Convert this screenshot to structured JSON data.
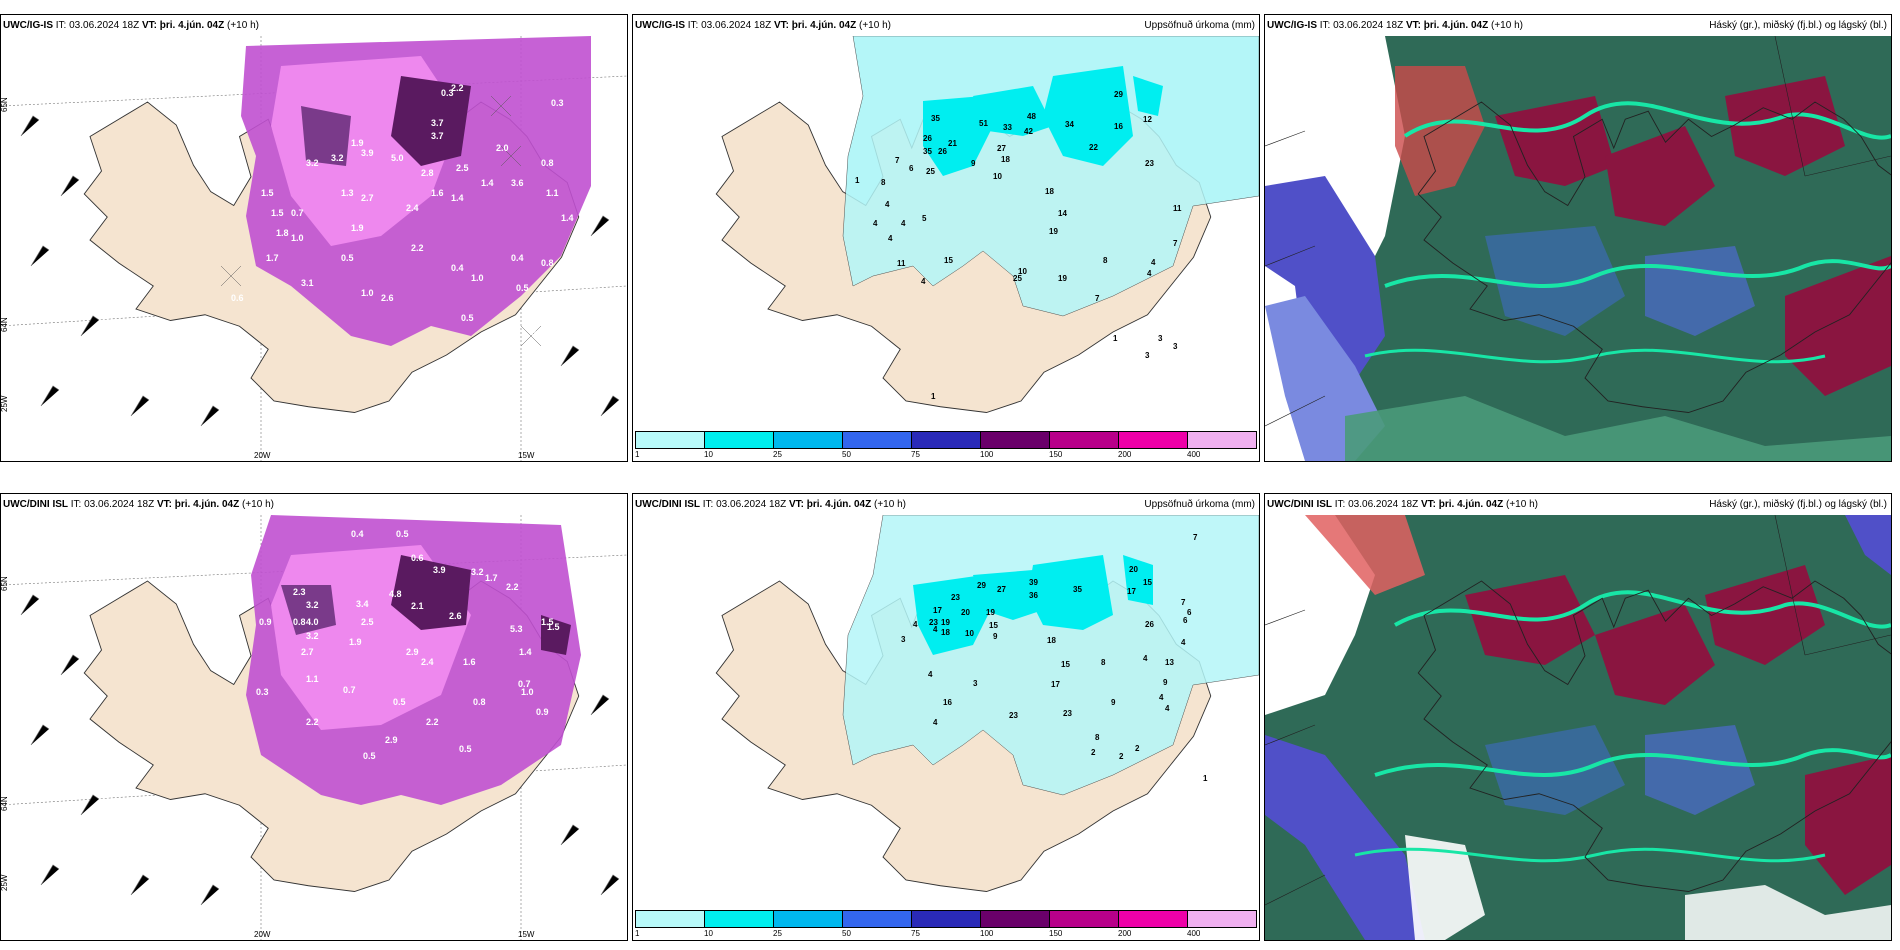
{
  "panels": [
    {
      "id": "top-left",
      "model": "UWC/IG-IS",
      "it_label": "IT:",
      "it_value": "03.06.2024 18Z",
      "vt_label": "VT:",
      "vt_value": "þri. 4.jún. 04Z",
      "lead": "(+10 h)",
      "right_title": "",
      "axis_labels": {
        "lat65": "65N",
        "lat64": "64N",
        "lon25": "25W",
        "lon20": "20W",
        "lon15": "15W"
      },
      "values": [
        "0.3",
        "3.7",
        "3.7",
        "2.2",
        "0.3",
        "1.9",
        "1.4",
        "1.5",
        "0.8",
        "1.0",
        "2.0",
        "3.9",
        "5.0",
        "2.5",
        "1.6",
        "2.8",
        "3.2",
        "1.3",
        "3.2",
        "2.7",
        "3.6",
        "2.4",
        "0.7",
        "1.4",
        "1.8",
        "1.9",
        "2.2",
        "0.4",
        "1.0",
        "0.5",
        "3.1",
        "2.6",
        "1.0",
        "0.6",
        "0.5",
        "0.4",
        "0.5",
        "0.8",
        "1.1",
        "1.5",
        "0.3",
        "1.7",
        "0.6",
        "1.4"
      ]
    },
    {
      "id": "top-middle",
      "model": "UWC/IG-IS",
      "it_label": "IT:",
      "it_value": "03.06.2024 18Z",
      "vt_label": "VT:",
      "vt_value": "þri. 4.jún. 04Z",
      "lead": "(+10 h)",
      "right_title": "Uppsöfnuð úrkoma (mm)",
      "values": [
        "35",
        "26",
        "21",
        "35",
        "26",
        "25",
        "27",
        "18",
        "9",
        "10",
        "51",
        "33",
        "48",
        "42",
        "34",
        "22",
        "29",
        "16",
        "12",
        "23",
        "7",
        "8",
        "1",
        "6",
        "5",
        "4",
        "4",
        "4",
        "4",
        "4",
        "11",
        "15",
        "18",
        "14",
        "19",
        "25",
        "19",
        "8",
        "10",
        "11",
        "7",
        "7",
        "4",
        "4",
        "1",
        "3",
        "3",
        "3",
        "1"
      ],
      "legend_ticks": [
        "1",
        "10",
        "25",
        "50",
        "75",
        "100",
        "150",
        "200",
        "400"
      ]
    },
    {
      "id": "top-right",
      "model": "UWC/IG-IS",
      "it_label": "IT:",
      "it_value": "03.06.2024 18Z",
      "vt_label": "VT:",
      "vt_value": "þri. 4.jún. 04Z",
      "lead": "(+10 h)",
      "right_title": "Háský (gr.), miðský (fj.bl.) og lágský (bl.)"
    },
    {
      "id": "bottom-left",
      "model": "UWC/DINI ISL",
      "it_label": "IT:",
      "it_value": "03.06.2024 18Z",
      "vt_label": "VT:",
      "vt_value": "þri. 4.jún. 04Z",
      "lead": "(+10 h)",
      "right_title": "",
      "axis_labels": {
        "lat65": "65N",
        "lat64": "64N",
        "lon25": "25W",
        "lon20": "20W",
        "lon15": "15W"
      },
      "values": [
        "0.4",
        "0.5",
        "3.9",
        "3.2",
        "1.7",
        "2.2",
        "0.6",
        "2.3",
        "3.2",
        "3.4",
        "4.8",
        "2.1",
        "2.6",
        "1.5",
        "0.9",
        "4.0",
        "3.2",
        "2.5",
        "2.4",
        "1.4",
        "5.3",
        "0.8",
        "2.7",
        "1.9",
        "2.9",
        "1.6",
        "0.3",
        "1.1",
        "0.7",
        "0.5",
        "2.2",
        "0.8",
        "2.2",
        "2.9",
        "0.5",
        "0.5",
        "1.0",
        "0.9",
        "0.7",
        "1.5",
        "0.4"
      ]
    },
    {
      "id": "bottom-middle",
      "model": "UWC/DINI ISL",
      "it_label": "IT:",
      "it_value": "03.06.2024 18Z",
      "vt_label": "VT:",
      "vt_value": "þri. 4.jún. 04Z",
      "lead": "(+10 h)",
      "right_title": "Uppsöfnuð úrkoma (mm)",
      "values": [
        "23",
        "17",
        "23",
        "19",
        "18",
        "20",
        "29",
        "27",
        "10",
        "19",
        "15",
        "39",
        "36",
        "35",
        "20",
        "17",
        "15",
        "26",
        "4",
        "3",
        "4",
        "9",
        "18",
        "15",
        "8",
        "4",
        "7",
        "3",
        "17",
        "13",
        "9",
        "4",
        "4",
        "16",
        "23",
        "23",
        "9",
        "4",
        "4",
        "8",
        "2",
        "2",
        "2",
        "1",
        "7",
        "6",
        "6",
        "4"
      ],
      "legend_ticks": [
        "1",
        "10",
        "25",
        "50",
        "75",
        "100",
        "150",
        "200",
        "400"
      ]
    },
    {
      "id": "bottom-right",
      "model": "UWC/DINI ISL",
      "it_label": "IT:",
      "it_value": "03.06.2024 18Z",
      "vt_label": "VT:",
      "vt_value": "þri. 4.jún. 04Z",
      "lead": "(+10 h)",
      "right_title": "Háský (gr.), miðský (fj.bl.) og lágský (bl.)"
    }
  ],
  "legend_colors": [
    "#b8fafa",
    "#00eeee",
    "#00b8ee",
    "#3366ee",
    "#2a2ab8",
    "#6a006a",
    "#b8008a",
    "#ee00a8",
    "#f0b0f0"
  ],
  "colors": {
    "land": "#f5e4d0",
    "sea": "#ffffff",
    "precip_light": "#b4f6f8",
    "precip_mid": "#00eef0",
    "snow_light": "#ee88ee",
    "snow_mid": "#c050d0",
    "snow_dark": "#5a1a60",
    "cloud_high": "#2f6a57",
    "cloud_mid": "#8a1540",
    "cloud_low": "#5050c8",
    "cloud_edge": "#18e6a6"
  }
}
